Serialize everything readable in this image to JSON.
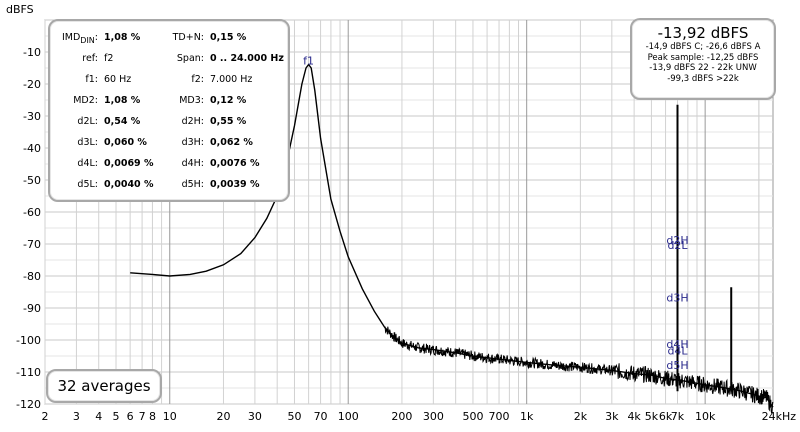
{
  "chart_data": {
    "type": "line",
    "title": "",
    "ylabel": "dBFS",
    "xlabel": "",
    "xscale": "log",
    "xlim": [
      2,
      24000
    ],
    "ylim": [
      -120,
      0
    ],
    "grid": true,
    "line_color": "#000000",
    "y_ticks": [
      "-10",
      "-20",
      "-30",
      "-40",
      "-50",
      "-60",
      "-70",
      "-80",
      "-90",
      "-100",
      "-110",
      "-120"
    ],
    "x_ticks": [
      {
        "v": 2,
        "label": "2"
      },
      {
        "v": 3,
        "label": "3"
      },
      {
        "v": 4,
        "label": "4"
      },
      {
        "v": 5,
        "label": "5"
      },
      {
        "v": 6,
        "label": "6"
      },
      {
        "v": 7,
        "label": "7"
      },
      {
        "v": 8,
        "label": "8"
      },
      {
        "v": 10,
        "label": "10"
      },
      {
        "v": 20,
        "label": "20"
      },
      {
        "v": 30,
        "label": "30"
      },
      {
        "v": 50,
        "label": "50"
      },
      {
        "v": 70,
        "label": "70"
      },
      {
        "v": 100,
        "label": "100"
      },
      {
        "v": 200,
        "label": "200"
      },
      {
        "v": 300,
        "label": "300"
      },
      {
        "v": 500,
        "label": "500"
      },
      {
        "v": 700,
        "label": "700"
      },
      {
        "v": 1000,
        "label": "1k"
      },
      {
        "v": 2000,
        "label": "2k"
      },
      {
        "v": 3000,
        "label": "3k"
      },
      {
        "v": 4000,
        "label": "4k"
      },
      {
        "v": 5000,
        "label": "5k"
      },
      {
        "v": 6000,
        "label": "6k"
      },
      {
        "v": 7000,
        "label": "7k"
      },
      {
        "v": 10000,
        "label": "10k"
      },
      {
        "v": 24000,
        "label": "24kHz"
      }
    ],
    "series": [
      {
        "values": [
          [
            6,
            -79
          ],
          [
            8,
            -79.5
          ],
          [
            10,
            -80
          ],
          [
            13,
            -79.5
          ],
          [
            16,
            -78.5
          ],
          [
            20,
            -76.5
          ],
          [
            25,
            -73
          ],
          [
            30,
            -68
          ],
          [
            35,
            -62
          ],
          [
            40,
            -55
          ],
          [
            45,
            -45
          ],
          [
            50,
            -33
          ],
          [
            55,
            -20
          ],
          [
            58,
            -15
          ],
          [
            60,
            -13.9
          ],
          [
            62,
            -15
          ],
          [
            65,
            -22
          ],
          [
            70,
            -37
          ],
          [
            80,
            -56
          ],
          [
            90,
            -66
          ],
          [
            100,
            -74
          ],
          [
            120,
            -84
          ],
          [
            140,
            -91
          ],
          [
            160,
            -96
          ],
          [
            180,
            -99
          ],
          [
            200,
            -101
          ],
          [
            250,
            -102.5
          ],
          [
            300,
            -103
          ],
          [
            400,
            -104
          ],
          [
            500,
            -105
          ],
          [
            700,
            -106
          ],
          [
            1000,
            -107
          ],
          [
            1500,
            -108
          ],
          [
            2000,
            -108.5
          ],
          [
            3000,
            -109.5
          ],
          [
            4000,
            -110.5
          ],
          [
            5000,
            -111
          ],
          [
            6000,
            -112
          ],
          [
            7000,
            -112.5
          ],
          [
            8000,
            -113
          ],
          [
            10000,
            -114
          ],
          [
            13000,
            -115
          ],
          [
            16000,
            -116
          ],
          [
            20000,
            -117.5
          ],
          [
            22000,
            -118
          ],
          [
            24000,
            -121
          ]
        ]
      }
    ],
    "spikes": [
      {
        "x": 7000,
        "y": -26.5
      },
      {
        "x": 14000,
        "y": -83.5
      }
    ],
    "annotations": [
      {
        "x": 60,
        "y": -13.9,
        "label": "f1"
      },
      {
        "x": 7000,
        "y": -70,
        "label": "d2H"
      },
      {
        "x": 7000,
        "y": -71.5,
        "label": "d2L"
      },
      {
        "x": 7000,
        "y": -88,
        "label": "d3H"
      },
      {
        "x": 7000,
        "y": -102.5,
        "label": "d4H"
      },
      {
        "x": 7000,
        "y": -104.5,
        "label": "d4L"
      },
      {
        "x": 7000,
        "y": -109,
        "label": "d5H"
      }
    ]
  },
  "imd_panel": {
    "rows": [
      {
        "l1": "IMD",
        "l1sub": "DIN",
        "v1": "1,08 %",
        "l2": "TD+N:",
        "v2": "0,15 %"
      },
      {
        "l1": "ref:",
        "v1": "f2",
        "l2": "Span:",
        "v2": "0 .. 24.000 Hz"
      },
      {
        "l1": "f1:",
        "v1": "60 Hz",
        "l2": "f2:",
        "v2": "7.000 Hz"
      },
      {
        "l1": "MD2:",
        "v1": "1,08 %",
        "l2": "MD3:",
        "v2": "0,12 %"
      },
      {
        "l1": "d2L:",
        "v1": "0,54 %",
        "l2": "d2H:",
        "v2": "0,55 %"
      },
      {
        "l1": "d3L:",
        "v1": "0,060 %",
        "l2": "d3H:",
        "v2": "0,062 %"
      },
      {
        "l1": "d4L:",
        "v1": "0,0069 %",
        "l2": "d4H:",
        "v2": "0,0076 %"
      },
      {
        "l1": "d5L:",
        "v1": "0,0040 %",
        "l2": "d5H:",
        "v2": "0,0039 %"
      }
    ]
  },
  "peak_panel": {
    "main": "-13,92 dBFS",
    "line1": "-14,9 dBFS C; -26,6 dBFS A",
    "line2": "Peak sample: -12,25 dBFS",
    "line3": "-13,9 dBFS 22 - 22k UNW",
    "line4": "-99,3 dBFS >22k"
  },
  "averages": "32 averages"
}
